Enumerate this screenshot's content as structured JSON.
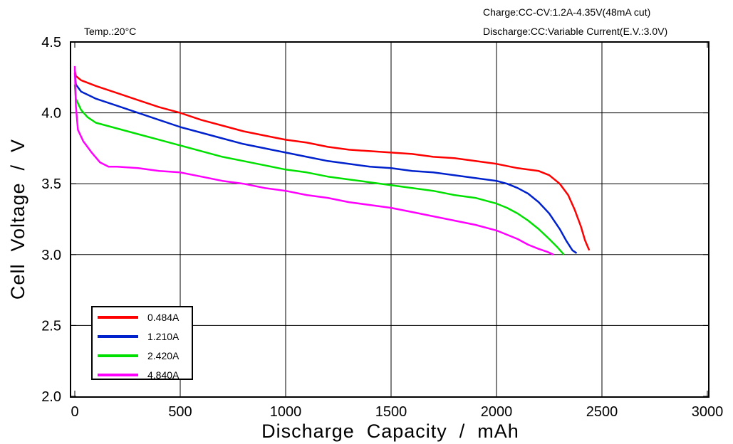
{
  "chart_data": {
    "type": "line",
    "title": "",
    "xlabel": "Discharge  Capacity  /  mAh",
    "ylabel": "Cell  Voltage  /  V",
    "xlim": [
      0,
      3000
    ],
    "ylim": [
      2.0,
      4.5
    ],
    "xticks": [
      0,
      500,
      1000,
      1500,
      2000,
      2500,
      3000
    ],
    "xtick_labels": [
      "0",
      "500",
      "1000",
      "1500",
      "2000",
      "2500",
      "3000"
    ],
    "yticks": [
      2.0,
      2.5,
      3.0,
      3.5,
      4.0,
      4.5
    ],
    "ytick_labels": [
      "2.0",
      "2.5",
      "3.0",
      "3.5",
      "4.0",
      "4.5"
    ],
    "grid": true,
    "legend_position": "bottom-left",
    "annotations": {
      "temperature": "Temp.:20°C",
      "charge_condition": "Charge:CC-CV:1.2A-4.35V(48mA cut)",
      "discharge_condition": "Discharge:CC:Variable Current(E.V.:3.0V)"
    },
    "series": [
      {
        "name": "0.484A",
        "color": "#ff0000",
        "x": [
          0,
          5,
          30,
          100,
          200,
          300,
          400,
          500,
          600,
          700,
          800,
          900,
          1000,
          1100,
          1200,
          1300,
          1400,
          1500,
          1600,
          1700,
          1800,
          1900,
          2000,
          2100,
          2200,
          2250,
          2300,
          2340,
          2370,
          2400,
          2420,
          2440
        ],
        "y": [
          4.3,
          4.26,
          4.23,
          4.19,
          4.14,
          4.09,
          4.04,
          4.0,
          3.95,
          3.91,
          3.87,
          3.84,
          3.81,
          3.79,
          3.76,
          3.74,
          3.73,
          3.72,
          3.71,
          3.69,
          3.68,
          3.66,
          3.64,
          3.61,
          3.59,
          3.56,
          3.5,
          3.42,
          3.32,
          3.2,
          3.1,
          3.03
        ]
      },
      {
        "name": "1.210A",
        "color": "#0022cc",
        "x": [
          0,
          5,
          30,
          100,
          200,
          300,
          400,
          500,
          600,
          700,
          800,
          900,
          1000,
          1100,
          1200,
          1300,
          1400,
          1500,
          1600,
          1700,
          1800,
          1900,
          2000,
          2050,
          2100,
          2150,
          2200,
          2250,
          2300,
          2330,
          2360,
          2380
        ],
        "y": [
          4.28,
          4.2,
          4.15,
          4.1,
          4.05,
          4.0,
          3.95,
          3.9,
          3.86,
          3.82,
          3.78,
          3.75,
          3.72,
          3.69,
          3.66,
          3.64,
          3.62,
          3.61,
          3.59,
          3.58,
          3.56,
          3.54,
          3.52,
          3.5,
          3.47,
          3.43,
          3.37,
          3.29,
          3.18,
          3.1,
          3.03,
          3.01
        ]
      },
      {
        "name": "2.420A",
        "color": "#00e000",
        "x": [
          0,
          5,
          30,
          60,
          100,
          200,
          300,
          400,
          500,
          600,
          700,
          800,
          900,
          1000,
          1100,
          1200,
          1300,
          1400,
          1500,
          1600,
          1700,
          1800,
          1900,
          2000,
          2050,
          2100,
          2150,
          2200,
          2250,
          2290,
          2320
        ],
        "y": [
          4.2,
          4.1,
          4.02,
          3.97,
          3.93,
          3.89,
          3.85,
          3.81,
          3.77,
          3.73,
          3.69,
          3.66,
          3.63,
          3.6,
          3.58,
          3.55,
          3.53,
          3.51,
          3.49,
          3.47,
          3.45,
          3.42,
          3.4,
          3.36,
          3.33,
          3.29,
          3.24,
          3.18,
          3.11,
          3.05,
          3.0
        ]
      },
      {
        "name": "4.840A",
        "color": "#ff00ff",
        "x": [
          0,
          5,
          15,
          40,
          80,
          120,
          160,
          200,
          300,
          400,
          500,
          600,
          700,
          800,
          900,
          1000,
          1100,
          1200,
          1300,
          1400,
          1500,
          1600,
          1700,
          1800,
          1900,
          2000,
          2050,
          2100,
          2150,
          2200,
          2240,
          2270
        ],
        "y": [
          4.33,
          4.05,
          3.88,
          3.8,
          3.72,
          3.65,
          3.62,
          3.62,
          3.61,
          3.59,
          3.58,
          3.55,
          3.52,
          3.5,
          3.47,
          3.45,
          3.42,
          3.4,
          3.37,
          3.35,
          3.33,
          3.3,
          3.27,
          3.24,
          3.21,
          3.17,
          3.14,
          3.11,
          3.07,
          3.04,
          3.02,
          3.0
        ]
      }
    ]
  }
}
